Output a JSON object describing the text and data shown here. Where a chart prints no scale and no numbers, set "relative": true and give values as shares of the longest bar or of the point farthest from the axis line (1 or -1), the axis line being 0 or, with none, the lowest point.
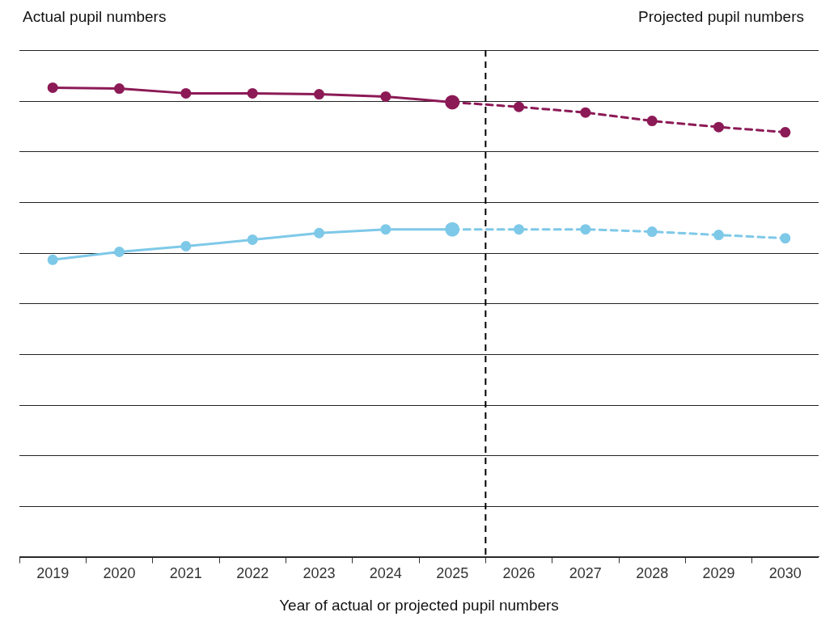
{
  "chart_data": {
    "type": "line",
    "xlabel": "Year of actual or projected pupil numbers",
    "annotations": [
      "Actual pupil numbers",
      "Projected pupil numbers"
    ],
    "x": [
      2019,
      2020,
      2021,
      2022,
      2023,
      2024,
      2025,
      2026,
      2027,
      2028,
      2029,
      2030
    ],
    "xlim": [
      2018.5,
      2030.5
    ],
    "xticks": [
      {
        "value": 2018.5,
        "label": null
      },
      2019,
      {
        "value": 2019.5,
        "label": null
      },
      2020,
      {
        "value": 2020.5,
        "label": null
      },
      2021,
      {
        "value": 2021.5,
        "label": null
      },
      2022,
      {
        "value": 2022.5,
        "label": null
      },
      2023,
      {
        "value": 2023.5,
        "label": null
      },
      2024,
      {
        "value": 2024.5,
        "label": null
      },
      2025,
      {
        "value": 2025.5,
        "label": null
      },
      2026,
      {
        "value": 2026.5,
        "label": null
      },
      2027,
      {
        "value": 2027.5,
        "label": null
      },
      2028,
      {
        "value": 2028.5,
        "label": null
      },
      2029,
      {
        "value": 2029.5,
        "label": null
      },
      2030
    ],
    "relative": true,
    "grid": "y",
    "legend": false,
    "marker": "circle",
    "tick_labels": "x",
    "series": [
      {
        "color": "#8b1a56",
        "line_style": "solid",
        "values": [
          1,
          0.998,
          0.988,
          0.988,
          0.986,
          0.981,
          0.969,
          null,
          null,
          null,
          null,
          null
        ]
      },
      {
        "color": "#8b1a56",
        "line_style": "dashed",
        "values": [
          null,
          null,
          null,
          null,
          null,
          null,
          0.969,
          0.959,
          0.947,
          0.929,
          0.916,
          0.905
        ]
      },
      {
        "color": "#7ec8e8",
        "line_style": "solid",
        "values": [
          0.633,
          0.65,
          0.662,
          0.676,
          0.69,
          0.698,
          0.698,
          null,
          null,
          null,
          null,
          null
        ]
      },
      {
        "color": "#7ec8e8",
        "line_style": "dashed",
        "values": [
          null,
          null,
          null,
          null,
          null,
          null,
          0.698,
          0.698,
          0.698,
          0.693,
          0.686,
          0.679
        ]
      }
    ],
    "ref_lines": [
      {
        "axis": "x",
        "value": 2025.5,
        "color": "#000000",
        "line_style": "dashed"
      }
    ]
  }
}
